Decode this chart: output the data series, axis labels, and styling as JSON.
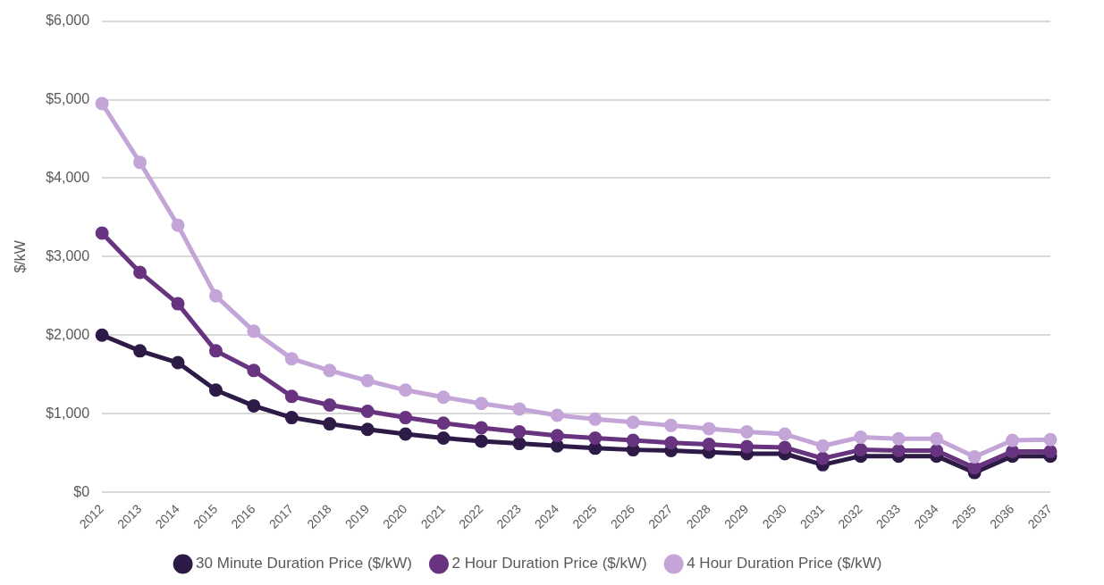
{
  "chart_data": {
    "type": "line",
    "ylabel": "$/kW",
    "categories": [
      "2012",
      "2013",
      "2014",
      "2015",
      "2016",
      "2017",
      "2018",
      "2019",
      "2020",
      "2021",
      "2022",
      "2023",
      "2024",
      "2025",
      "2026",
      "2027",
      "2028",
      "2029",
      "2030",
      "2031",
      "2032",
      "2033",
      "2034",
      "2035",
      "2036",
      "2037"
    ],
    "series": [
      {
        "name": "30 Minute Duration Price ($/kW)",
        "color": "#2e1a47",
        "values": [
          2000,
          1800,
          1650,
          1300,
          1100,
          950,
          870,
          800,
          740,
          690,
          650,
          620,
          590,
          560,
          540,
          530,
          510,
          490,
          490,
          350,
          460,
          460,
          460,
          250,
          460,
          460
        ]
      },
      {
        "name": "2 Hour Duration Price ($/kW)",
        "color": "#68347f",
        "values": [
          3300,
          2800,
          2400,
          1800,
          1550,
          1220,
          1110,
          1030,
          950,
          880,
          820,
          770,
          720,
          690,
          660,
          630,
          610,
          580,
          570,
          430,
          540,
          530,
          530,
          310,
          520,
          520
        ]
      },
      {
        "name": "4 Hour Duration Price ($/kW)",
        "color": "#c3a5d8",
        "values": [
          4950,
          4200,
          3400,
          2500,
          2050,
          1700,
          1550,
          1420,
          1300,
          1210,
          1130,
          1060,
          980,
          930,
          890,
          850,
          810,
          770,
          740,
          590,
          700,
          680,
          680,
          450,
          660,
          670
        ]
      }
    ],
    "ylim": [
      0,
      6000
    ],
    "yticks": [
      {
        "value": 0,
        "label": "$0"
      },
      {
        "value": 1000,
        "label": "$1,000"
      },
      {
        "value": 2000,
        "label": "$2,000"
      },
      {
        "value": 3000,
        "label": "$3,000"
      },
      {
        "value": 4000,
        "label": "$4,000"
      },
      {
        "value": 5000,
        "label": "$5,000"
      },
      {
        "value": 6000,
        "label": "$6,000"
      }
    ],
    "grid": "y",
    "legend": "bottom",
    "marker": "circle",
    "line_style": "solid"
  }
}
